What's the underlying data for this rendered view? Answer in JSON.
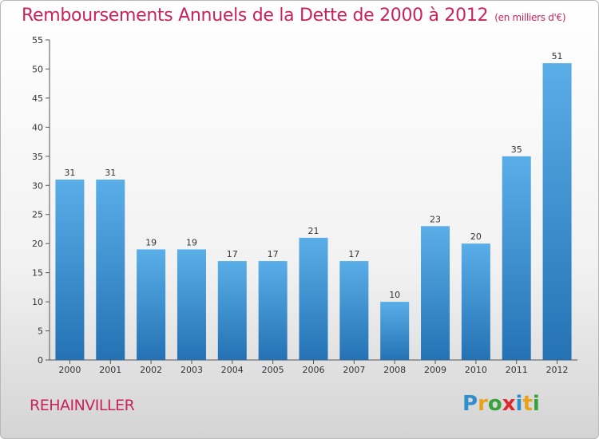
{
  "title": "Remboursements Annuels de la Dette de 2000 à 2012",
  "subtitle": "(en milliers d'€)",
  "commune": "REHAINVILLER",
  "logo": {
    "letters": [
      "P",
      "r",
      "o",
      "x",
      "i",
      "t",
      "i"
    ],
    "colors": [
      "#2f8fcd",
      "#e8a31a",
      "#3aa23a",
      "#e0272e",
      "#2f8fcd",
      "#e8a31a",
      "#3aa23a"
    ]
  },
  "colors": {
    "bar_light": "#5aaee8",
    "bar_dark": "#2472b4",
    "accent": "#c8245a"
  },
  "chart_data": {
    "type": "bar",
    "categories": [
      "2000",
      "2001",
      "2002",
      "2003",
      "2004",
      "2005",
      "2006",
      "2007",
      "2008",
      "2009",
      "2010",
      "2011",
      "2012"
    ],
    "values": [
      31,
      31,
      19,
      19,
      17,
      17,
      21,
      17,
      10,
      23,
      20,
      35,
      51
    ],
    "data_labels": [
      "31",
      "31",
      "19",
      "19",
      "17",
      "17",
      "21",
      "17",
      "10",
      "23",
      "20",
      "35",
      "51"
    ],
    "y_ticks": [
      "0",
      "5",
      "10",
      "15",
      "20",
      "25",
      "30",
      "35",
      "40",
      "45",
      "50",
      "55"
    ],
    "ylim": [
      0,
      55
    ],
    "xlabel": "",
    "ylabel": "",
    "grid": false
  }
}
